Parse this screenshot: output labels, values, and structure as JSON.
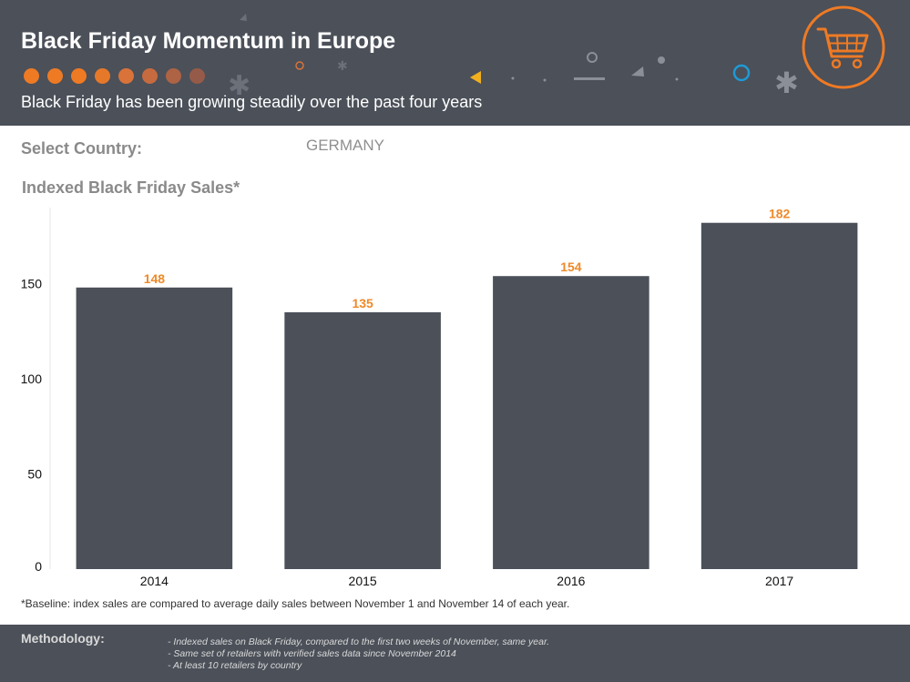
{
  "header": {
    "title": "Black Friday Momentum in Europe",
    "subtitle": "Black Friday has been growing steadily over the past four years",
    "dot_colors": [
      "#ee7a24",
      "#ee7a24",
      "#ee7a24",
      "#e6782a",
      "#d9733a",
      "#c66b3f",
      "#ad6344",
      "#965b48"
    ],
    "accent_color": "#ee7a24"
  },
  "country": {
    "label": "Select Country:",
    "selected": "GERMANY"
  },
  "chart_title": "Indexed Black Friday Sales*",
  "chart_data": {
    "type": "bar",
    "categories": [
      "2014",
      "2015",
      "2016",
      "2017"
    ],
    "values": [
      148,
      135,
      154,
      182
    ],
    "ylim": [
      0,
      190
    ],
    "yticks": [
      0,
      50,
      100,
      150
    ],
    "bar_color": "#4b5059",
    "label_color": "#ee8a2a",
    "grid": false
  },
  "footnote": "*Baseline: index sales are compared to average daily sales between November 1 and November 14 of each year.",
  "methodology": {
    "label": "Methodology:",
    "items": [
      "- Indexed sales on Black Friday, compared to the first two weeks of November, same year.",
      "- Same set of retailers with verified sales data since November 2014",
      "- At least 10 retailers by country"
    ]
  },
  "icons": {
    "cart": "shopping-cart-icon"
  }
}
